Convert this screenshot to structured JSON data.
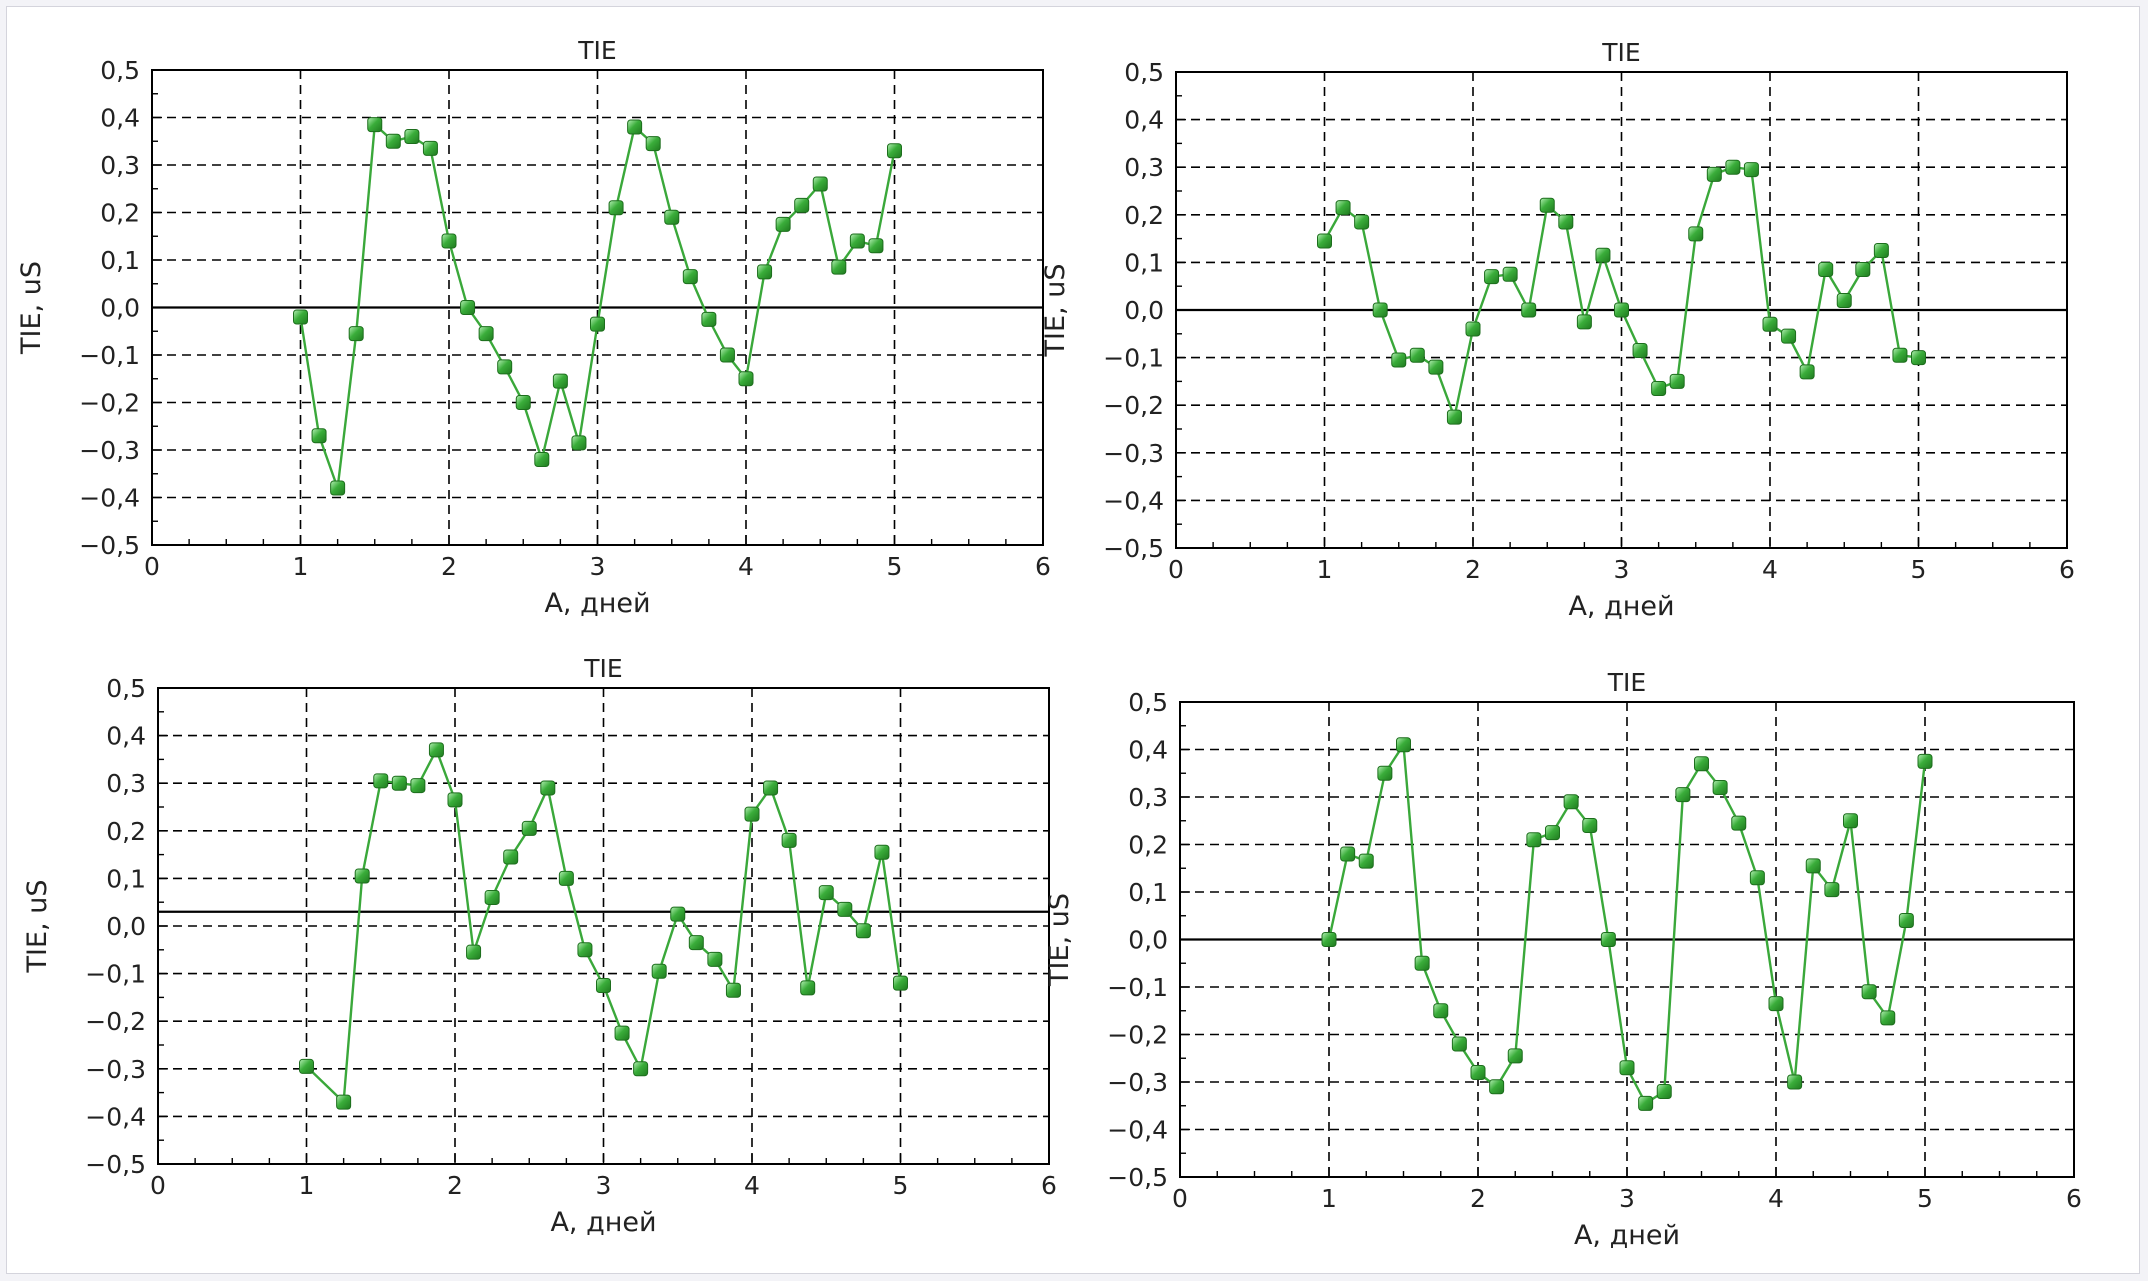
{
  "colors": {
    "line": "#3aa83a",
    "marker": "#2e9a2e",
    "marker_highlight": "#9be39b",
    "grid": "#000000",
    "zero_line": "#000000",
    "background": "#ffffff"
  },
  "chart_data": [
    {
      "type": "line",
      "title": "TIE",
      "xlabel": "A, дней",
      "ylabel": "TIE, uS",
      "xlim": [
        0,
        6
      ],
      "ylim": [
        -0.5,
        0.5
      ],
      "xticks": [
        "0",
        "1",
        "2",
        "3",
        "4",
        "5",
        "6"
      ],
      "yticks": [
        "0,5",
        "0,4",
        "0,3",
        "0,2",
        "0,1",
        "0,0",
        "−0,1",
        "−0,2",
        "−0,3",
        "−0,4",
        "−0,5"
      ],
      "grid": true,
      "series": [
        {
          "x": [
            1,
            1.125,
            1.25,
            1.375,
            1.5,
            1.625,
            1.75,
            1.875,
            2,
            2.125,
            2.25,
            2.375,
            2.5,
            2.625,
            2.75,
            2.875,
            3,
            3.125,
            3.25,
            3.375,
            3.5,
            3.625,
            3.75,
            3.875,
            4,
            4.125,
            4.25,
            4.375,
            4.5,
            4.625,
            4.75,
            4.875,
            5
          ],
          "y": [
            -0.02,
            -0.27,
            -0.38,
            -0.055,
            0.385,
            0.35,
            0.36,
            0.335,
            0.14,
            0.0,
            -0.055,
            -0.125,
            -0.2,
            -0.32,
            -0.155,
            -0.285,
            -0.035,
            0.21,
            0.38,
            0.345,
            0.19,
            0.065,
            -0.025,
            -0.1,
            -0.15,
            0.075,
            0.175,
            0.215,
            0.26,
            0.085,
            0.14,
            0.13,
            0.33
          ]
        }
      ]
    },
    {
      "type": "line",
      "title": "TIE",
      "xlabel": "A, дней",
      "ylabel": "TIE, uS",
      "xlim": [
        0,
        6
      ],
      "ylim": [
        -0.5,
        0.5
      ],
      "xticks": [
        "0",
        "1",
        "2",
        "3",
        "4",
        "5",
        "6"
      ],
      "yticks": [
        "0,5",
        "0,4",
        "0,3",
        "0,2",
        "0,1",
        "0,0",
        "−0,1",
        "−0,2",
        "−0,3",
        "−0,4",
        "−0,5"
      ],
      "grid": true,
      "series": [
        {
          "x": [
            1,
            1.125,
            1.25,
            1.375,
            1.5,
            1.625,
            1.75,
            1.875,
            2,
            2.125,
            2.25,
            2.375,
            2.5,
            2.625,
            2.75,
            2.875,
            3,
            3.125,
            3.25,
            3.375,
            3.5,
            3.625,
            3.75,
            3.875,
            4,
            4.125,
            4.25,
            4.375,
            4.5,
            4.625,
            4.75,
            4.875,
            5
          ],
          "y": [
            0.145,
            0.215,
            0.185,
            0.0,
            -0.105,
            -0.095,
            -0.12,
            -0.225,
            -0.04,
            0.07,
            0.075,
            0.0,
            0.22,
            0.185,
            -0.025,
            0.115,
            0.0,
            -0.085,
            -0.165,
            -0.15,
            0.16,
            0.285,
            0.3,
            0.295,
            -0.03,
            -0.055,
            -0.13,
            0.085,
            0.02,
            0.085,
            0.125,
            -0.095,
            -0.1
          ]
        }
      ]
    },
    {
      "type": "line",
      "title": "TIE",
      "xlabel": "A, дней",
      "ylabel": "TIE, uS",
      "xlim": [
        0,
        6
      ],
      "ylim": [
        -0.5,
        0.5
      ],
      "xticks": [
        "0",
        "1",
        "2",
        "3",
        "4",
        "5",
        "6"
      ],
      "yticks": [
        "0,5",
        "0,4",
        "0,3",
        "0,2",
        "0,1",
        "0,0",
        "−0,1",
        "−0,2",
        "−0,3",
        "−0,4",
        "−0,5"
      ],
      "grid": true,
      "zero_at": 0.03,
      "series": [
        {
          "x": [
            1,
            1.25,
            1.375,
            1.5,
            1.625,
            1.75,
            1.875,
            2,
            2.125,
            2.25,
            2.375,
            2.5,
            2.625,
            2.75,
            2.875,
            3,
            3.125,
            3.25,
            3.375,
            3.5,
            3.625,
            3.75,
            3.875,
            4,
            4.125,
            4.25,
            4.375,
            4.5,
            4.625,
            4.75,
            4.875,
            5
          ],
          "y": [
            -0.295,
            -0.37,
            0.105,
            0.305,
            0.3,
            0.295,
            0.37,
            0.265,
            -0.055,
            0.06,
            0.145,
            0.205,
            0.29,
            0.1,
            -0.05,
            -0.125,
            -0.225,
            -0.3,
            -0.095,
            0.025,
            -0.035,
            -0.07,
            -0.135,
            0.235,
            0.29,
            0.18,
            -0.13,
            0.07,
            0.035,
            -0.01,
            0.155,
            -0.12
          ]
        }
      ]
    },
    {
      "type": "line",
      "title": "TIE",
      "xlabel": "A, дней",
      "ylabel": "TIE, uS",
      "xlim": [
        0,
        6
      ],
      "ylim": [
        -0.5,
        0.5
      ],
      "xticks": [
        "0",
        "1",
        "2",
        "3",
        "4",
        "5",
        "6"
      ],
      "yticks": [
        "0,5",
        "0,4",
        "0,3",
        "0,2",
        "0,1",
        "0,0",
        "−0,1",
        "−0,2",
        "−0,3",
        "−0,4",
        "−0,5"
      ],
      "grid": true,
      "series": [
        {
          "x": [
            1,
            1.125,
            1.25,
            1.375,
            1.5,
            1.625,
            1.75,
            1.875,
            2,
            2.125,
            2.25,
            2.375,
            2.5,
            2.625,
            2.75,
            2.875,
            3,
            3.125,
            3.25,
            3.375,
            3.5,
            3.625,
            3.75,
            3.875,
            4,
            4.125,
            4.25,
            4.375,
            4.5,
            4.625,
            4.75,
            4.875,
            5
          ],
          "y": [
            0.0,
            0.18,
            0.165,
            0.35,
            0.41,
            -0.05,
            -0.15,
            -0.22,
            -0.28,
            -0.31,
            -0.245,
            0.21,
            0.225,
            0.29,
            0.24,
            0.0,
            -0.27,
            -0.345,
            -0.32,
            0.305,
            0.37,
            0.32,
            0.245,
            0.13,
            -0.135,
            -0.3,
            0.155,
            0.105,
            0.25,
            -0.11,
            -0.165,
            0.04,
            0.375
          ]
        }
      ]
    }
  ]
}
